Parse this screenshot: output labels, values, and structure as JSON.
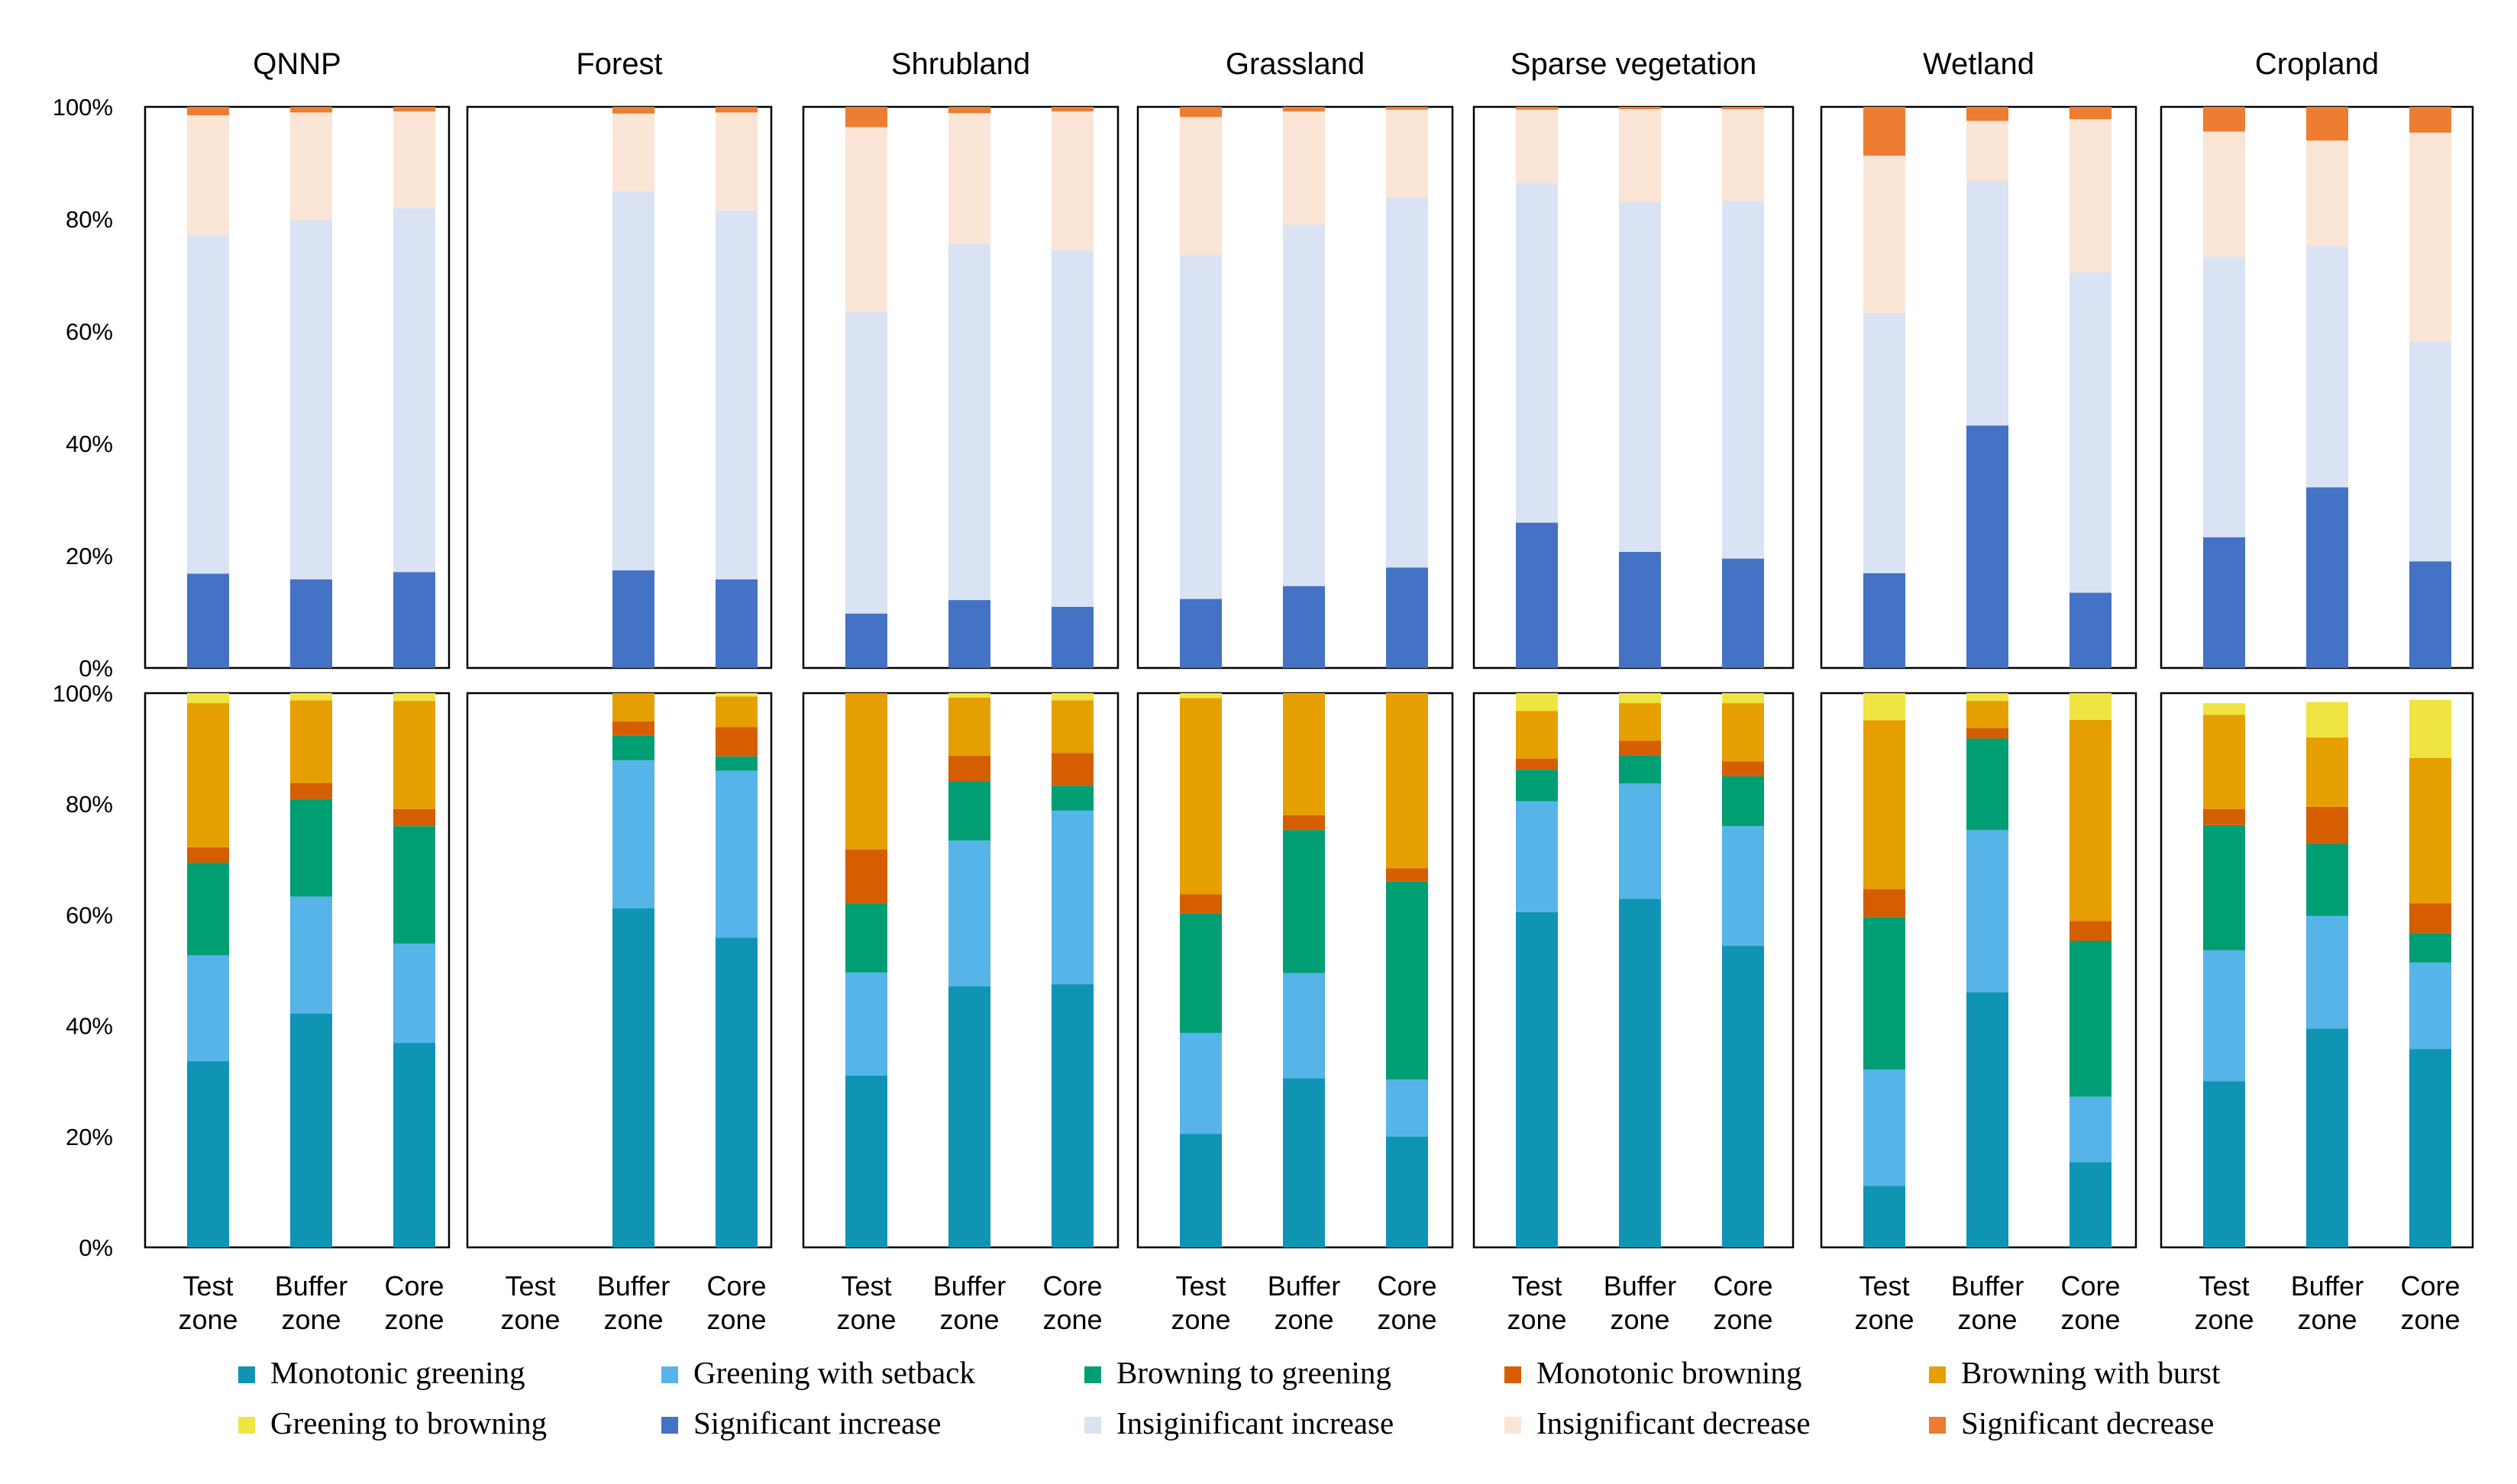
{
  "chart_data": {
    "type": "bar",
    "stacked": true,
    "facets": [
      "QNNP",
      "Forest",
      "Shrubland",
      "Grassland",
      "Sparse vegetation",
      "Wetland",
      "Cropland"
    ],
    "categories": [
      [
        "Test",
        "zone"
      ],
      [
        "Buffer",
        "zone"
      ],
      [
        "Core",
        "zone"
      ]
    ],
    "ylim": [
      0,
      100
    ],
    "y_ticks": [
      "0%",
      "20%",
      "40%",
      "60%",
      "80%",
      "100%"
    ],
    "top_row": {
      "series": [
        {
          "name": "Significant increase",
          "color": "#4472c4"
        },
        {
          "name": "Insiginificant increase",
          "color": "#dae3f3"
        },
        {
          "name": "Insignificant decrease",
          "color": "#fbe5d6"
        },
        {
          "name": "Significant decrease",
          "color": "#ed7d31"
        }
      ],
      "values": [
        [
          [
            16.8,
            60.4,
            21.3,
            1.5
          ],
          [
            15.8,
            64.0,
            19.2,
            1.0
          ],
          [
            17.1,
            64.9,
            17.2,
            0.8
          ]
        ],
        [
          null,
          [
            17.4,
            67.6,
            13.8,
            1.2
          ],
          [
            15.8,
            65.7,
            17.5,
            1.0
          ]
        ],
        [
          [
            9.7,
            53.8,
            32.9,
            3.6
          ],
          [
            12.1,
            63.5,
            23.3,
            1.1
          ],
          [
            10.9,
            63.6,
            24.7,
            0.8
          ]
        ],
        [
          [
            12.3,
            61.3,
            24.6,
            1.8
          ],
          [
            14.6,
            64.4,
            20.2,
            0.8
          ],
          [
            17.9,
            66.0,
            15.6,
            0.5
          ]
        ],
        [
          [
            25.9,
            60.6,
            13.0,
            0.5
          ],
          [
            20.7,
            62.4,
            16.5,
            0.4
          ],
          [
            19.5,
            63.8,
            16.3,
            0.4
          ]
        ],
        [
          [
            16.9,
            46.3,
            28.1,
            8.7
          ],
          [
            43.2,
            43.6,
            10.7,
            2.5
          ],
          [
            13.4,
            57.1,
            27.3,
            2.2
          ]
        ],
        [
          [
            23.3,
            50.0,
            22.3,
            4.4
          ],
          [
            32.2,
            43.0,
            18.8,
            6.0
          ],
          [
            19.0,
            39.2,
            37.2,
            4.6
          ]
        ]
      ]
    },
    "bottom_row": {
      "series": [
        {
          "name": "Monotonic greening",
          "color": "#0f94b4"
        },
        {
          "name": "Greening with setback",
          "color": "#56b4e9"
        },
        {
          "name": "Browning to greening",
          "color": "#009e73"
        },
        {
          "name": "Monotonic browning",
          "color": "#d55e00"
        },
        {
          "name": "Browning with burst",
          "color": "#e69f00"
        },
        {
          "name": "Greening to browning",
          "color": "#f0e442"
        }
      ],
      "values": [
        [
          [
            33.6,
            19.1,
            16.7,
            2.8,
            26.0,
            1.8
          ],
          [
            42.2,
            21.1,
            17.6,
            2.9,
            14.9,
            1.3
          ],
          [
            36.9,
            17.9,
            21.2,
            3.1,
            19.5,
            1.4
          ]
        ],
        [
          null,
          [
            61.2,
            26.7,
            4.4,
            2.6,
            5.1,
            0.0
          ],
          [
            55.9,
            30.1,
            2.6,
            5.3,
            5.5,
            0.6
          ]
        ],
        [
          [
            31.0,
            18.6,
            12.5,
            9.7,
            28.2,
            0.0
          ],
          [
            47.1,
            26.3,
            10.7,
            4.6,
            10.5,
            0.8
          ],
          [
            47.5,
            31.3,
            4.5,
            5.9,
            9.5,
            1.3
          ]
        ],
        [
          [
            20.5,
            18.2,
            21.5,
            3.5,
            35.4,
            0.9
          ],
          [
            30.5,
            19.0,
            25.8,
            2.7,
            21.9,
            0.1
          ],
          [
            20.0,
            10.3,
            35.7,
            2.4,
            31.5,
            0.1
          ]
        ],
        [
          [
            60.5,
            20.0,
            5.7,
            2.0,
            8.6,
            3.2
          ],
          [
            62.9,
            20.8,
            5.1,
            2.6,
            6.8,
            1.8
          ],
          [
            54.4,
            21.6,
            9.0,
            2.7,
            10.5,
            1.8
          ]
        ],
        [
          [
            11.1,
            21.0,
            27.5,
            5.0,
            30.5,
            4.9
          ],
          [
            46.0,
            29.3,
            16.5,
            1.9,
            4.9,
            1.4
          ],
          [
            15.4,
            11.8,
            28.1,
            3.6,
            36.3,
            4.8
          ]
        ],
        [
          [
            30.0,
            23.6,
            22.6,
            2.9,
            17.0,
            2.1
          ],
          [
            39.5,
            20.3,
            13.0,
            6.7,
            12.5,
            6.4
          ],
          [
            35.8,
            15.6,
            5.3,
            5.4,
            26.2,
            10.5
          ]
        ]
      ]
    },
    "legend": [
      [
        "Monotonic greening",
        "Greening with setback",
        "Browning to greening",
        "Monotonic browning",
        "Browning with burst"
      ],
      [
        "Greening to browning",
        "Significant increase",
        "Insiginificant increase",
        "Insignificant decrease",
        "Significant decrease"
      ]
    ],
    "legend_position": "bottom"
  }
}
